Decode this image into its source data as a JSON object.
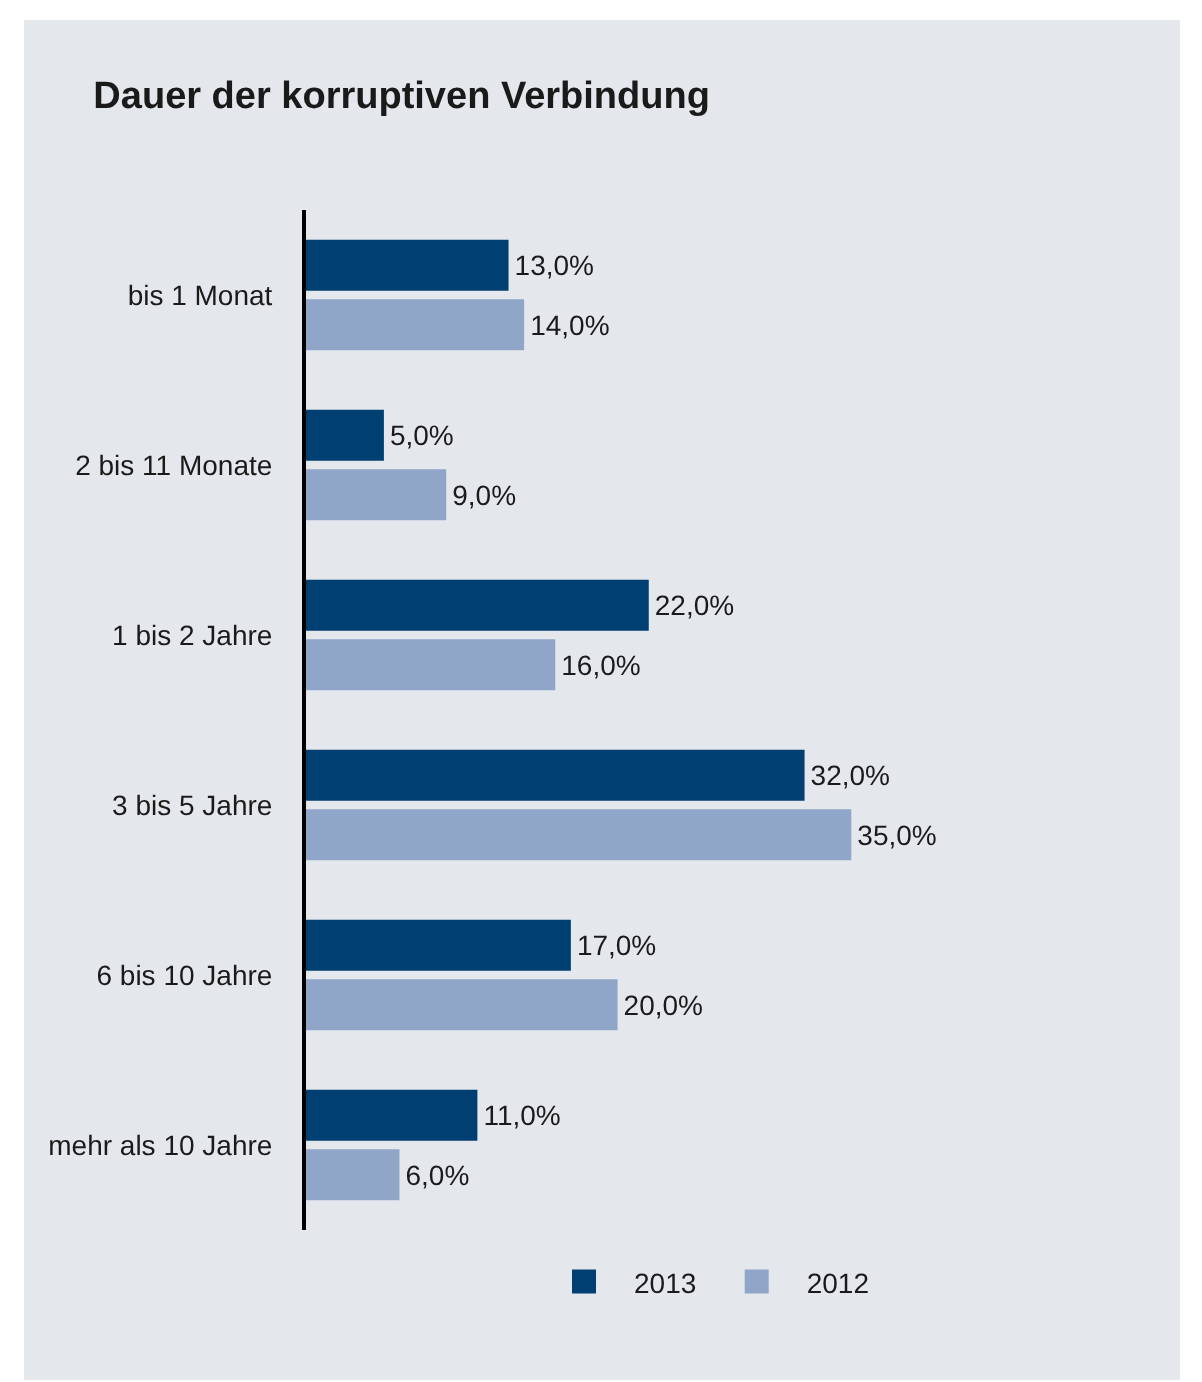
{
  "chart_data": {
    "type": "bar",
    "orientation": "horizontal",
    "title": "Dauer der korruptiven Verbindung",
    "categories": [
      "bis 1 Monat",
      "2 bis 11 Monate",
      "1 bis 2 Jahre",
      "3 bis 5 Jahre",
      "6 bis 10 Jahre",
      "mehr als 10 Jahre"
    ],
    "series": [
      {
        "name": "2013",
        "color": "#003f72",
        "values": [
          13,
          5,
          22,
          32,
          17,
          11
        ],
        "value_labels": [
          "13,0%",
          "5,0%",
          "22,0%",
          "32,0%",
          "17,0%",
          "11,0%"
        ]
      },
      {
        "name": "2012",
        "color": "#8fa6c9",
        "values": [
          14,
          9,
          16,
          35,
          20,
          6
        ],
        "value_labels": [
          "14,0%",
          "9,0%",
          "16,0%",
          "35,0%",
          "20,0%",
          "6,0%"
        ]
      }
    ],
    "legend": "bottom right",
    "grid": false
  }
}
